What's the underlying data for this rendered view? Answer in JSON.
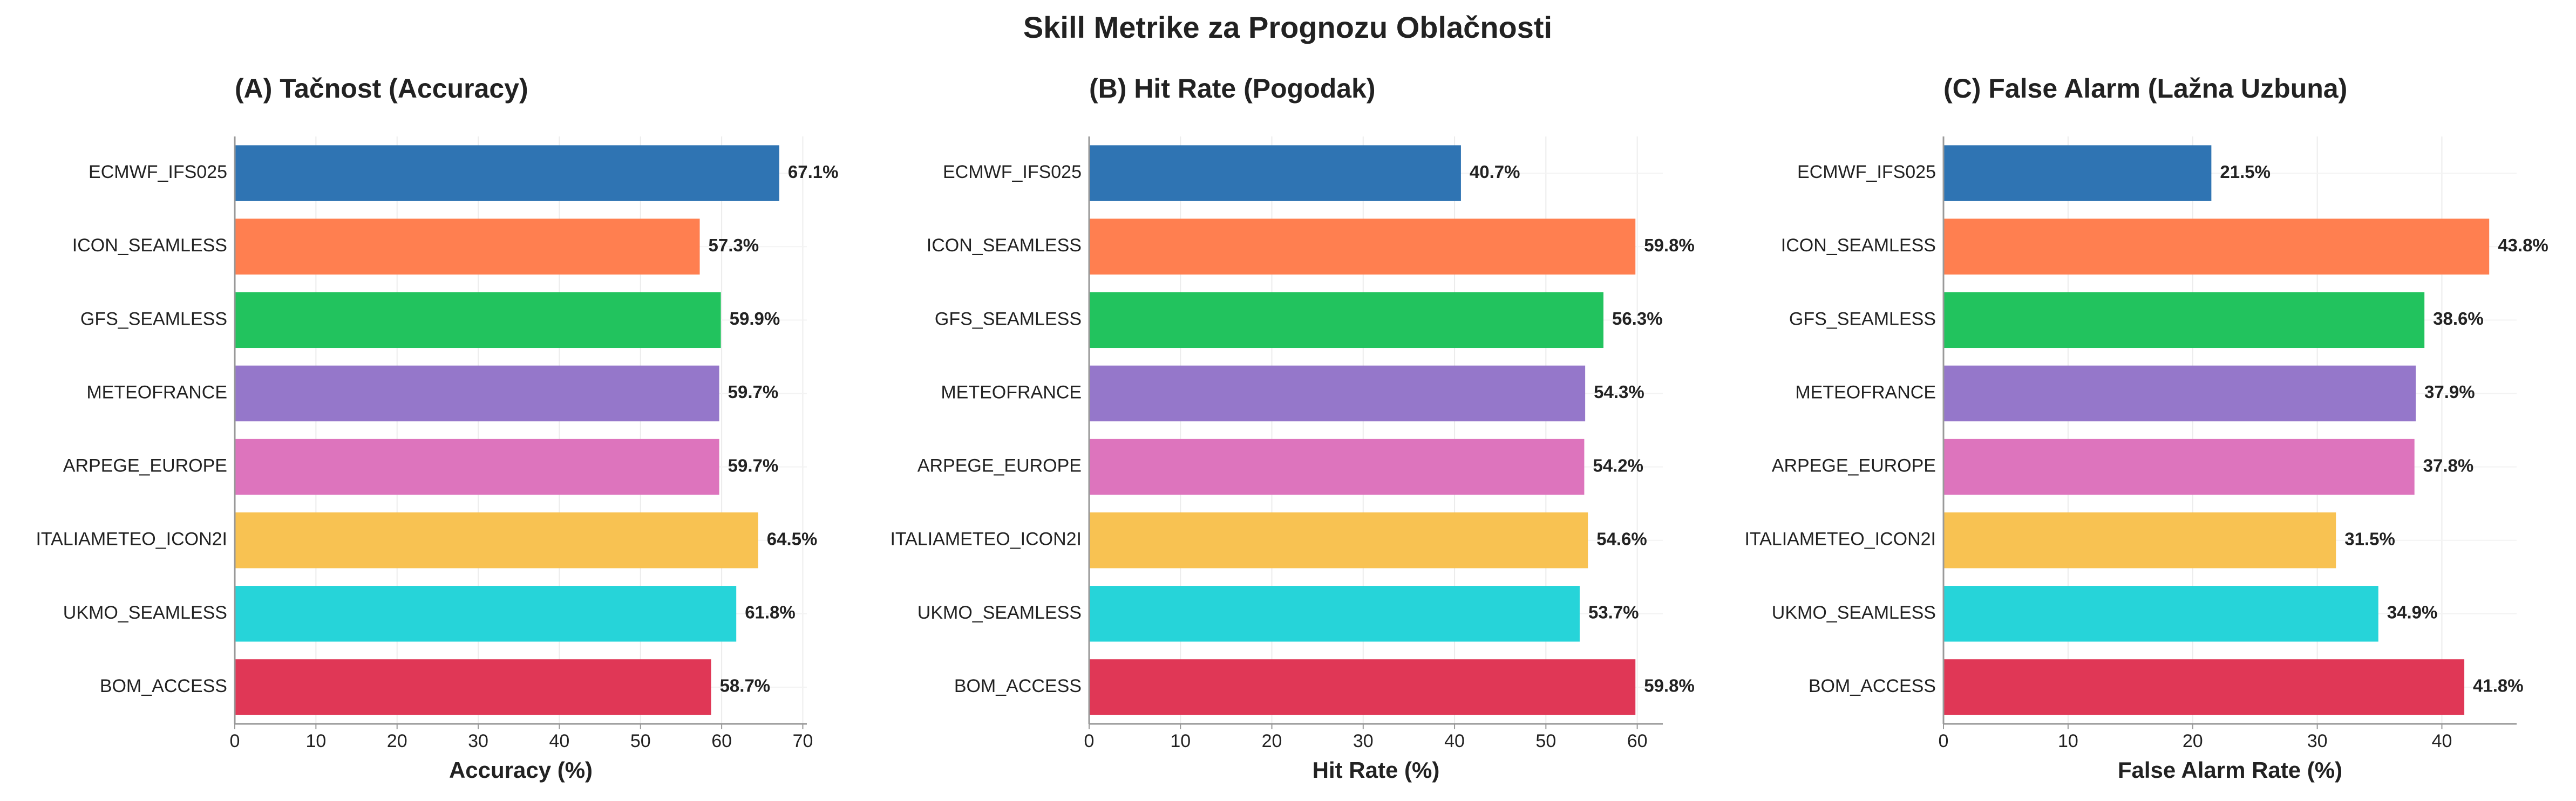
{
  "title": "Skill Metrike za Prognozu Oblačnosti",
  "chart_data": [
    {
      "type": "bar",
      "orientation": "horizontal",
      "title": "(A) Tačnost (Accuracy)",
      "xlabel": "Accuracy (%)",
      "categories": [
        "ECMWF_IFS025",
        "ICON_SEAMLESS",
        "GFS_SEAMLESS",
        "METEOFRANCE",
        "ARPEGE_EUROPE",
        "ITALIAMETEO_ICON2I",
        "UKMO_SEAMLESS",
        "BOM_ACCESS"
      ],
      "values": [
        67.1,
        57.3,
        59.9,
        59.7,
        59.7,
        64.5,
        61.8,
        58.7
      ],
      "value_labels": [
        "67.1%",
        "57.3%",
        "59.9%",
        "59.7%",
        "59.7%",
        "64.5%",
        "61.8%",
        "58.7%"
      ],
      "colors": [
        "#2f74b3",
        "#ff7f50",
        "#22c35e",
        "#9577ca",
        "#dd74bd",
        "#f8c252",
        "#26d4d9",
        "#e03756"
      ],
      "xlim": [
        0,
        70.5
      ],
      "xticks": [
        0,
        10,
        20,
        30,
        40,
        50,
        60,
        70
      ],
      "grid": true
    },
    {
      "type": "bar",
      "orientation": "horizontal",
      "title": "(B) Hit Rate (Pogodak)",
      "xlabel": "Hit Rate (%)",
      "categories": [
        "ECMWF_IFS025",
        "ICON_SEAMLESS",
        "GFS_SEAMLESS",
        "METEOFRANCE",
        "ARPEGE_EUROPE",
        "ITALIAMETEO_ICON2I",
        "UKMO_SEAMLESS",
        "BOM_ACCESS"
      ],
      "values": [
        40.7,
        59.8,
        56.3,
        54.3,
        54.2,
        54.6,
        53.7,
        59.8
      ],
      "value_labels": [
        "40.7%",
        "59.8%",
        "56.3%",
        "54.3%",
        "54.2%",
        "54.6%",
        "53.7%",
        "59.8%"
      ],
      "colors": [
        "#2f74b3",
        "#ff7f50",
        "#22c35e",
        "#9577ca",
        "#dd74bd",
        "#f8c252",
        "#26d4d9",
        "#e03756"
      ],
      "xlim": [
        0,
        62.8
      ],
      "xticks": [
        0,
        10,
        20,
        30,
        40,
        50,
        60
      ],
      "grid": true
    },
    {
      "type": "bar",
      "orientation": "horizontal",
      "title": "(C) False Alarm (Lažna Uzbuna)",
      "xlabel": "False Alarm Rate (%)",
      "categories": [
        "ECMWF_IFS025",
        "ICON_SEAMLESS",
        "GFS_SEAMLESS",
        "METEOFRANCE",
        "ARPEGE_EUROPE",
        "ITALIAMETEO_ICON2I",
        "UKMO_SEAMLESS",
        "BOM_ACCESS"
      ],
      "values": [
        21.5,
        43.8,
        38.6,
        37.9,
        37.8,
        31.5,
        34.9,
        41.8
      ],
      "value_labels": [
        "21.5%",
        "43.8%",
        "38.6%",
        "37.9%",
        "37.8%",
        "31.5%",
        "34.9%",
        "41.8%"
      ],
      "colors": [
        "#2f74b3",
        "#ff7f50",
        "#22c35e",
        "#9577ca",
        "#dd74bd",
        "#f8c252",
        "#26d4d9",
        "#e03756"
      ],
      "xlim": [
        0,
        46
      ],
      "xticks": [
        0,
        10,
        20,
        30,
        40
      ],
      "grid": true
    }
  ]
}
